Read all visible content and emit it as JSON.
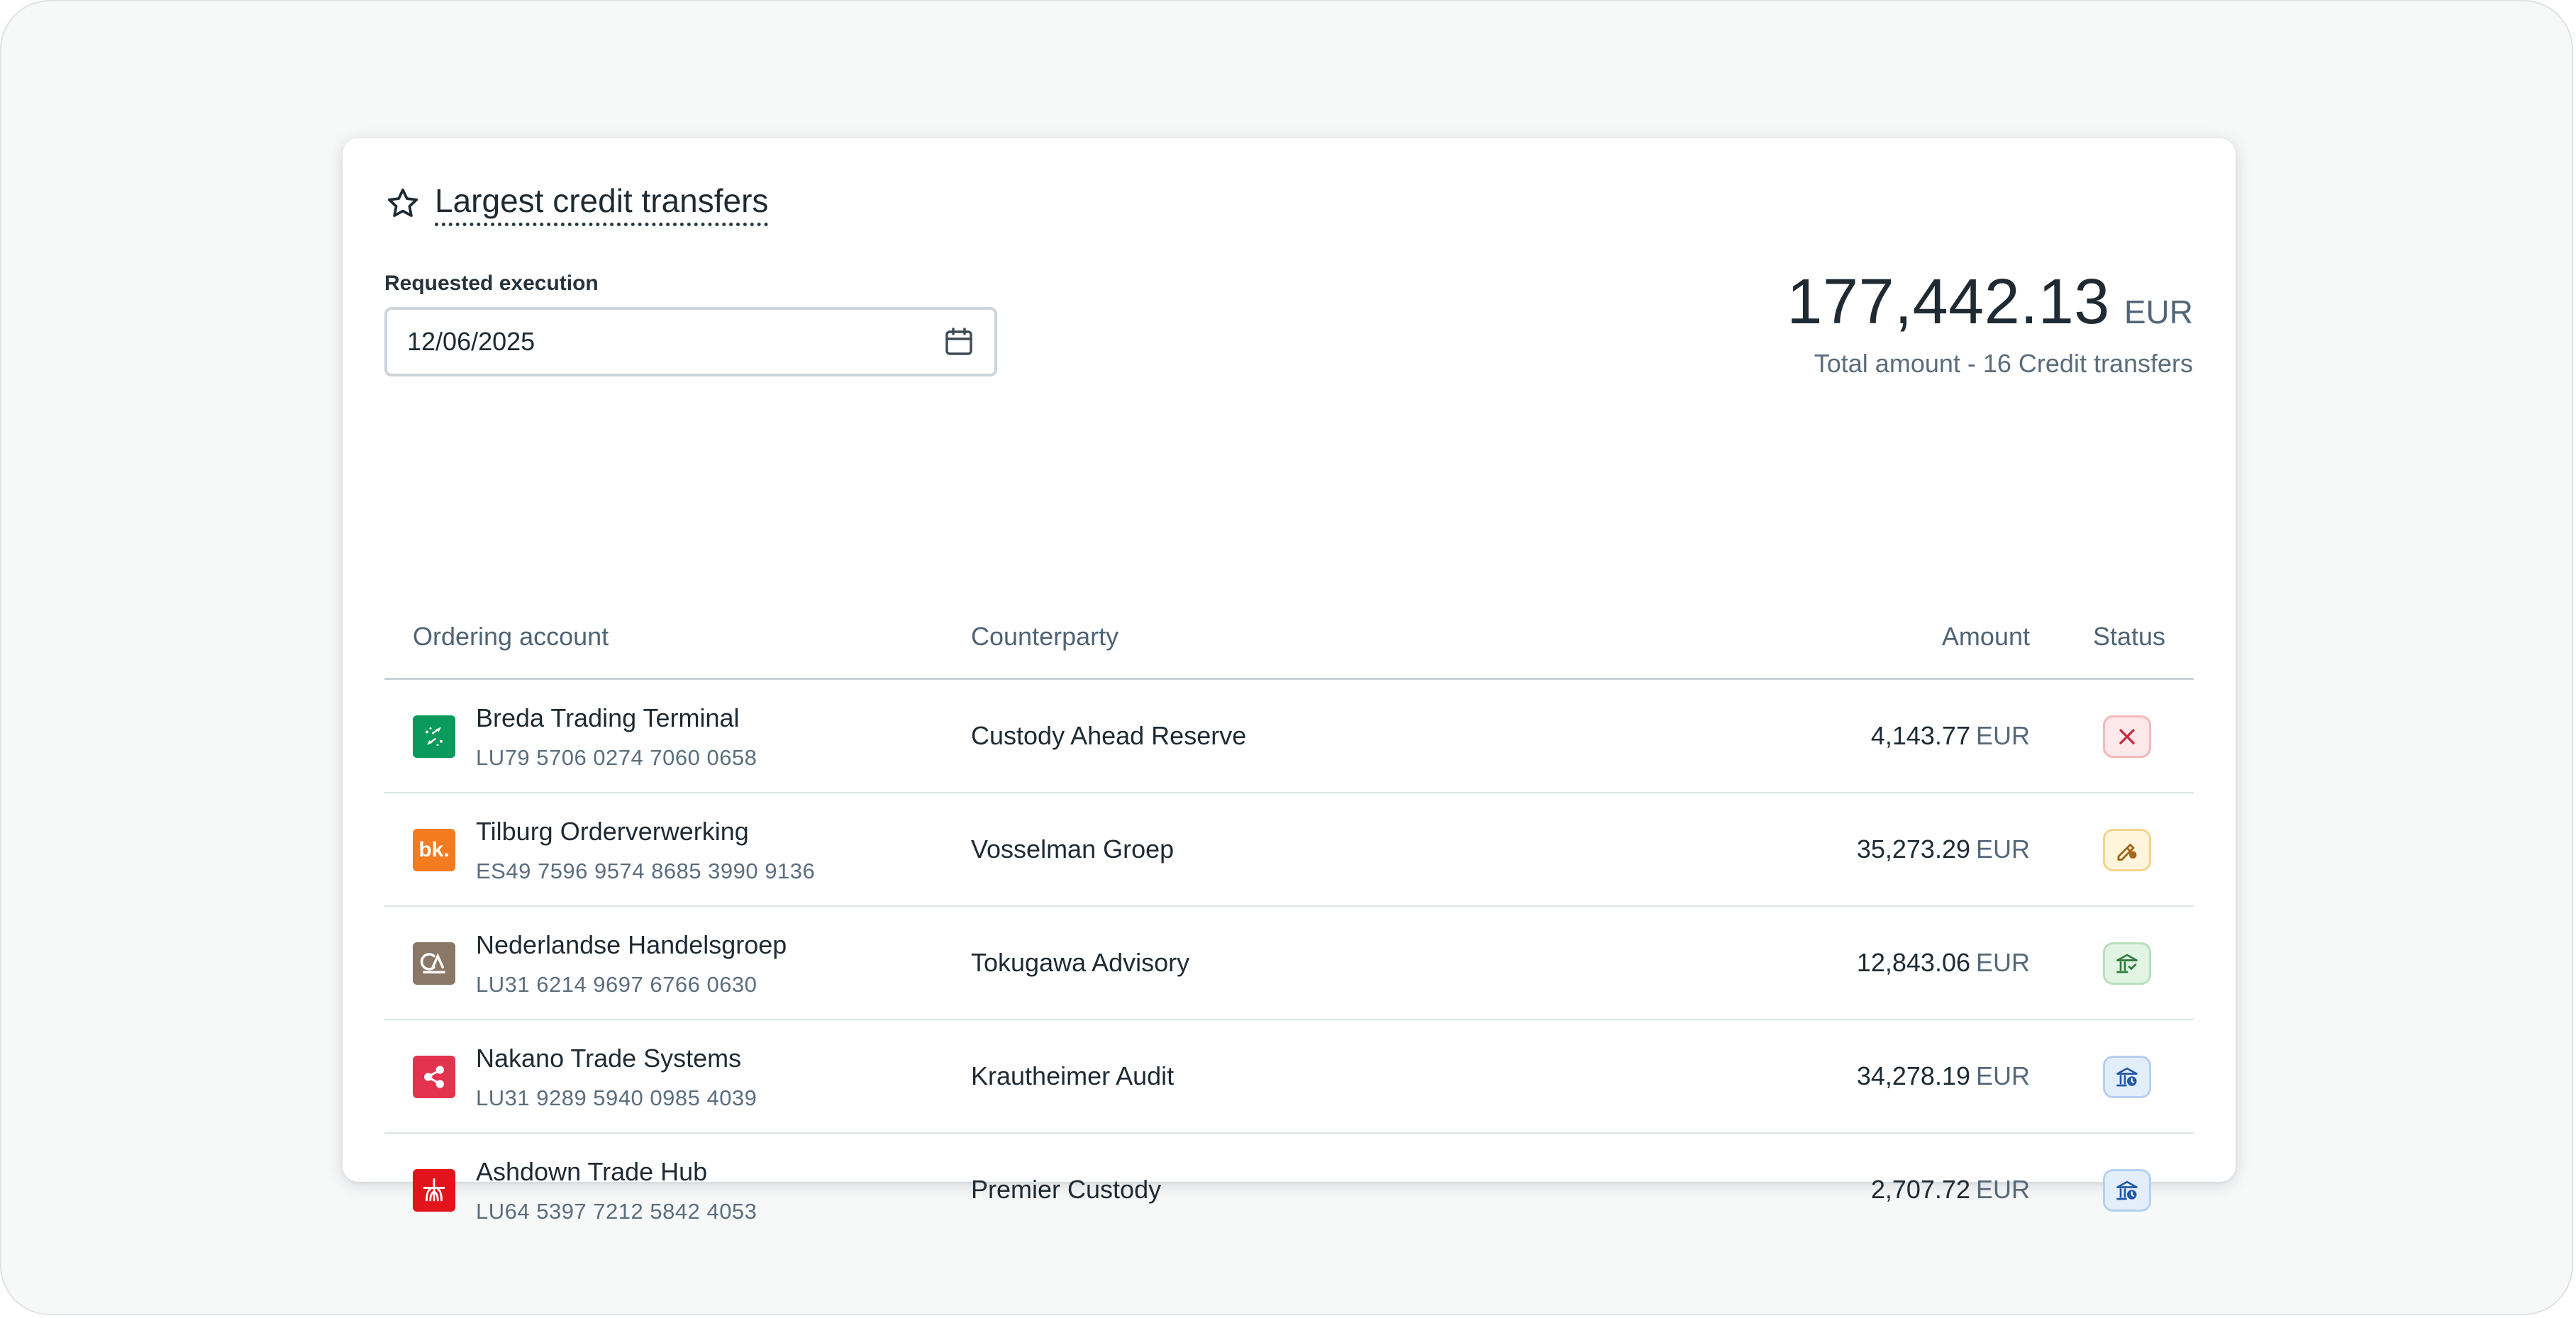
{
  "widget": {
    "title": "Largest credit transfers",
    "field_label": "Requested execution",
    "date_value": "12/06/2025",
    "total_amount": "177,442.13",
    "total_currency": "EUR",
    "total_subtitle": "Total amount - 16 Credit transfers"
  },
  "table": {
    "headers": {
      "account": "Ordering account",
      "counterparty": "Counterparty",
      "amount": "Amount",
      "status": "Status"
    },
    "rows": [
      {
        "account_name": "Breda Trading Terminal",
        "iban": "LU79 5706 0274 7060 0658",
        "counterparty": "Custody Ahead Reserve",
        "amount": "4,143.77",
        "currency": "EUR",
        "logo": "bank-logo-green",
        "logo_color": "#0a9a5c",
        "status": "rejected-icon",
        "status_color": "#c8293a"
      },
      {
        "account_name": "Tilburg Orderverwerking",
        "iban": "ES49 7596 9574 8685 3990 9136",
        "counterparty": "Vosselman Groep",
        "amount": "35,273.29",
        "currency": "EUR",
        "logo": "bank-logo-bk",
        "logo_text": "bk.",
        "logo_color": "#f47b1f",
        "status": "signature-pending-icon",
        "status_color": "#a5651a"
      },
      {
        "account_name": "Nederlandse Handelsgroep",
        "iban": "LU31 6214 9697 6766 0630",
        "counterparty": "Tokugawa Advisory",
        "amount": "12,843.06",
        "currency": "EUR",
        "logo": "bank-logo-ca",
        "logo_color": "#8a7765",
        "status": "bank-accepted-icon",
        "status_color": "#2d7a3a"
      },
      {
        "account_name": "Nakano Trade Systems",
        "iban": "LU31 9289 5940 0985 4039",
        "counterparty": "Krautheimer Audit",
        "amount": "34,278.19",
        "currency": "EUR",
        "logo": "bank-logo-share",
        "logo_color": "#e3334f",
        "status": "bank-pending-icon",
        "status_color": "#2157a6"
      },
      {
        "account_name": "Ashdown Trade Hub",
        "iban": "LU64 5397 7212 5842 4053",
        "counterparty": "Premier Custody",
        "amount": "2,707.72",
        "currency": "EUR",
        "logo": "bank-logo-red",
        "logo_color": "#e2131b",
        "status": "bank-pending-icon",
        "status_color": "#2157a6"
      }
    ]
  }
}
